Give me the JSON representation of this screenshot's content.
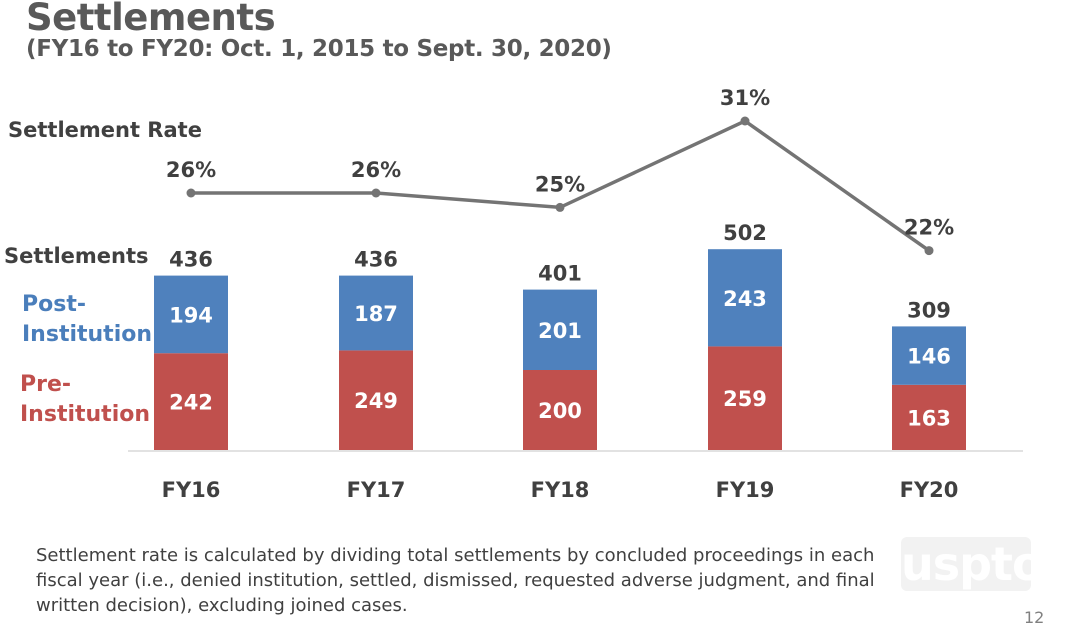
{
  "header": {
    "title": "Settlements",
    "subtitle": "(FY16 to FY20: Oct. 1, 2015 to Sept. 30, 2020)"
  },
  "labels": {
    "rate": "Settlement Rate",
    "settlements": "Settlements",
    "post_line1": "Post-",
    "post_line2": "Institution",
    "pre_line1": "Pre-",
    "pre_line2": "Institution"
  },
  "chart_data": {
    "type": "bar",
    "stacked": true,
    "categories": [
      "FY16",
      "FY17",
      "FY18",
      "FY19",
      "FY20"
    ],
    "series": [
      {
        "name": "Pre-Institution",
        "values": [
          242,
          249,
          200,
          259,
          163
        ],
        "color": "#c0504d"
      },
      {
        "name": "Post-Institution",
        "values": [
          194,
          187,
          201,
          243,
          146
        ],
        "color": "#4f81bd"
      }
    ],
    "totals": [
      436,
      436,
      401,
      502,
      309
    ],
    "line_series": {
      "name": "Settlement Rate",
      "values": [
        26,
        26,
        25,
        31,
        22
      ],
      "labels": [
        "26%",
        "26%",
        "25%",
        "31%",
        "22%"
      ],
      "color": "#747474"
    },
    "ylim": [
      0,
      502
    ]
  },
  "footnote": "Settlement rate is calculated by dividing total settlements by concluded proceedings in each fiscal year (i.e., denied institution, settled, dismissed, requested adverse judgment, and final written decision), excluding joined cases.",
  "logo_text": "uspto",
  "page_number": "12"
}
